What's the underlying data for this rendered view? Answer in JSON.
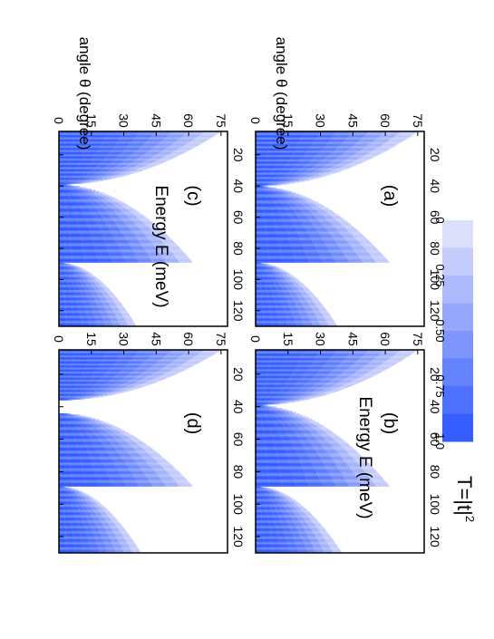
{
  "figure": {
    "colorbar": {
      "title": "T=|t|",
      "title_superscript": "2",
      "tick_labels": [
        "0",
        "0.25",
        "0.50",
        "0.75",
        "1.0"
      ],
      "color_low": "#e8e8fa",
      "color_high": "#2a55ff",
      "levels": 8
    },
    "x_axis_label": "Energy E (meV)",
    "y_axis_label": "angle  θ (degree)",
    "x_tick_labels": [
      "20",
      "40",
      "60",
      "80",
      "100",
      "120"
    ],
    "y_tick_labels": [
      "0",
      "15",
      "30",
      "45",
      "60",
      "75"
    ]
  },
  "chart_data": [
    {
      "type": "heatmap",
      "panel": "(a)",
      "xlabel": "Energy E (meV)",
      "ylabel": "angle  θ (degree)",
      "xlim": [
        5,
        130
      ],
      "ylim": [
        0,
        78
      ],
      "xticks": [
        20,
        40,
        60,
        80,
        100,
        120
      ],
      "yticks": [
        0,
        15,
        30,
        45,
        60,
        75
      ],
      "bands": [
        {
          "x_start": 5,
          "x_end": 40,
          "profile": "decreasing",
          "max_angle": 75
        },
        {
          "x_start": 40,
          "x_end": 89,
          "profile": "increasing",
          "max_angle": 62
        },
        {
          "x_start": 89,
          "x_end": 130,
          "profile": "increasing",
          "max_angle": 38
        }
      ]
    },
    {
      "type": "heatmap",
      "panel": "(b)",
      "xlabel": "Energy E (meV)",
      "ylabel": "angle  θ (degree)",
      "xlim": [
        5,
        130
      ],
      "ylim": [
        0,
        78
      ],
      "xticks": [
        20,
        40,
        60,
        80,
        100,
        120
      ],
      "yticks": [
        0,
        15,
        30,
        45,
        60,
        75
      ],
      "bands": [
        {
          "x_start": 5,
          "x_end": 39,
          "profile": "decreasing",
          "max_angle": 75
        },
        {
          "x_start": 39,
          "x_end": 89,
          "profile": "increasing",
          "max_angle": 62
        },
        {
          "x_start": 89,
          "x_end": 130,
          "profile": "increasing",
          "max_angle": 40
        }
      ]
    },
    {
      "type": "heatmap",
      "panel": "(c)",
      "xlabel": "Energy E (meV)",
      "ylabel": "angle  θ (degree)",
      "xlim": [
        5,
        130
      ],
      "ylim": [
        0,
        78
      ],
      "xticks": [
        20,
        40,
        60,
        80,
        100,
        120
      ],
      "yticks": [
        0,
        15,
        30,
        45,
        60,
        75
      ],
      "bands": [
        {
          "x_start": 5,
          "x_end": 39,
          "profile": "decreasing",
          "max_angle": 75
        },
        {
          "x_start": 39,
          "x_end": 89,
          "profile": "increasing",
          "max_angle": 62
        },
        {
          "x_start": 89,
          "x_end": 130,
          "profile": "increasing",
          "max_angle": 36
        }
      ]
    },
    {
      "type": "heatmap",
      "panel": "(d)",
      "xlabel": "Energy E (meV)",
      "ylabel": "angle  θ (degree)",
      "xlim": [
        5,
        130
      ],
      "ylim": [
        0,
        78
      ],
      "xticks": [
        20,
        40,
        60,
        80,
        100,
        120
      ],
      "yticks": [
        0,
        15,
        30,
        45,
        60,
        75
      ],
      "bands": [
        {
          "x_start": 5,
          "x_end": 36,
          "profile": "decreasing",
          "max_angle": 75
        },
        {
          "x_start": 44,
          "x_end": 89,
          "profile": "increasing",
          "max_angle": 62
        },
        {
          "x_start": 89,
          "x_end": 130,
          "profile": "increasing",
          "max_angle": 38
        }
      ]
    }
  ]
}
